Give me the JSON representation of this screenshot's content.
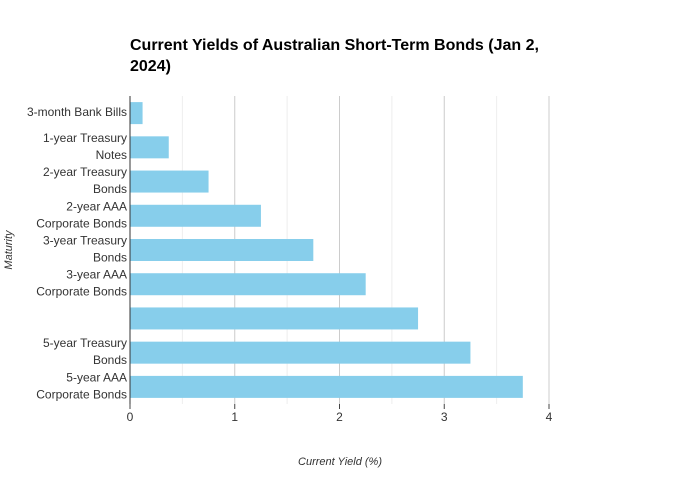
{
  "chart_data": {
    "type": "bar",
    "orientation": "horizontal",
    "title": "Current Yields of Australian Short-Term Bonds (Jan 2, 2024)",
    "x_label": "Current Yield (%)",
    "y_label": "Maturity",
    "categories": [
      "3-month Bank Bills",
      "1-year Treasury Notes",
      "2-year Treasury Bonds",
      "2-year AAA Corporate Bonds",
      "3-year Treasury Bonds",
      "3-year AAA Corporate Bonds",
      null,
      "5-year Treasury Bonds",
      "5-year AAA Corporate Bonds"
    ],
    "values": [
      0.12,
      0.37,
      0.75,
      1.25,
      1.75,
      2.25,
      2.75,
      3.25,
      3.75
    ],
    "color": "#87ceeb",
    "xlim": [
      0,
      4
    ],
    "xticks": [
      0,
      1,
      2,
      3,
      4
    ],
    "minor_xgrid": [
      0.5,
      1.5,
      2.5,
      3.5
    ],
    "grid": true
  }
}
